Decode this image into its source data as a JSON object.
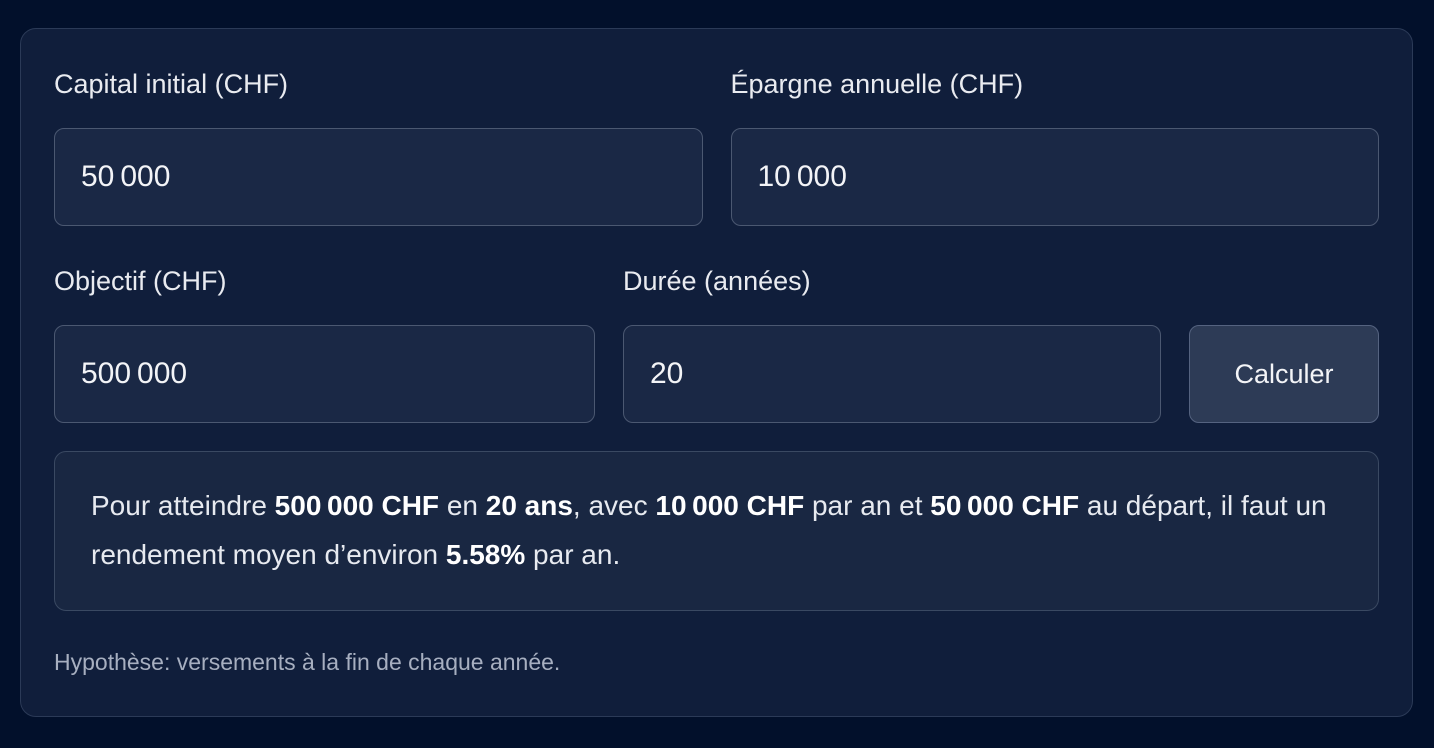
{
  "card": {
    "fields": [
      {
        "id": "capital",
        "label": "Capital initial (CHF)",
        "value": "50 000"
      },
      {
        "id": "epargne",
        "label": "Épargne annuelle (CHF)",
        "value": "10 000"
      },
      {
        "id": "objectif",
        "label": "Objectif (CHF)",
        "value": "500 000"
      },
      {
        "id": "duree",
        "label": "Durée (années)",
        "value": "20"
      }
    ],
    "button": {
      "label": "Calculer"
    },
    "result": {
      "segments": [
        {
          "text": "Pour atteindre ",
          "bold": false
        },
        {
          "text": "500 000 CHF",
          "bold": true
        },
        {
          "text": " en ",
          "bold": false
        },
        {
          "text": "20 ans",
          "bold": true
        },
        {
          "text": ", avec ",
          "bold": false
        },
        {
          "text": "10 000 CHF",
          "bold": true
        },
        {
          "text": " par an et ",
          "bold": false
        },
        {
          "text": "50 000 CHF",
          "bold": true
        },
        {
          "text": " au départ, il faut un rendement moyen d’environ ",
          "bold": false
        },
        {
          "text": "5.58%",
          "bold": true
        },
        {
          "text": " par an.",
          "bold": false
        }
      ]
    },
    "note": "Hypothèse: versements à la fin de chaque année."
  },
  "colors": {
    "page_bg": "#02102b",
    "card_bg": "#101e3b",
    "card_border": "#2b3a57",
    "input_bg": "#1a2845",
    "input_border": "#4b5871",
    "button_bg": "#2d3b56",
    "button_border": "#556380",
    "result_bg": "#192742",
    "result_border": "#3a4962",
    "text_primary": "#e9ebf0",
    "text_bold": "#ffffff",
    "text_muted": "#a7afc0"
  }
}
